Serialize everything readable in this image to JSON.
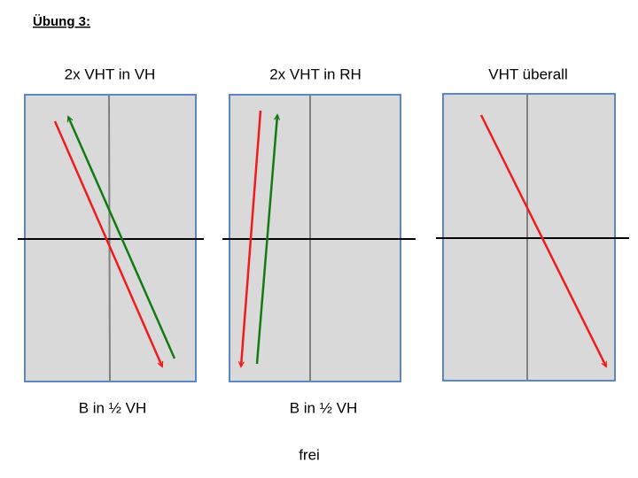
{
  "header": {
    "title": "Übung 3:"
  },
  "panels": [
    {
      "title": "2x VHT in VH",
      "caption": "B in ½ VH"
    },
    {
      "title": "2x VHT in RH",
      "caption": "B in ½ VH"
    },
    {
      "title": "VHT überall"
    }
  ],
  "footer": {
    "text": "frei"
  }
}
